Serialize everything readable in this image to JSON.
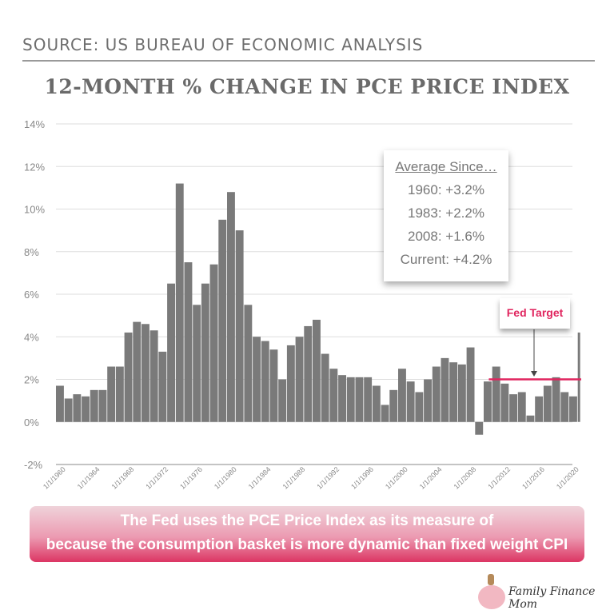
{
  "header": {
    "source": "SOURCE: US BUREAU OF ECONOMIC ANALYSIS"
  },
  "chart_data": {
    "type": "bar",
    "title": "12-MONTH % CHANGE IN PCE PRICE INDEX",
    "xlabel": "",
    "ylabel": "",
    "ylim": [
      -2,
      14
    ],
    "yticks": [
      "-2%",
      "0%",
      "2%",
      "4%",
      "6%",
      "8%",
      "10%",
      "12%",
      "14%"
    ],
    "xticks": [
      "1/1/1960",
      "1/1/1964",
      "1/1/1968",
      "1/1/1972",
      "1/1/1976",
      "1/1/1980",
      "1/1/1984",
      "1/1/1988",
      "1/1/1992",
      "1/1/1996",
      "1/1/2000",
      "1/1/2004",
      "1/1/2008",
      "1/1/2012",
      "1/1/2016",
      "1/1/2020"
    ],
    "grid": true,
    "bar_color": "#7a7a7a",
    "x": [
      1960,
      1961,
      1962,
      1963,
      1964,
      1965,
      1966,
      1967,
      1968,
      1969,
      1970,
      1971,
      1972,
      1973,
      1974,
      1975,
      1976,
      1977,
      1978,
      1979,
      1980,
      1981,
      1982,
      1983,
      1984,
      1985,
      1986,
      1987,
      1988,
      1989,
      1990,
      1991,
      1992,
      1993,
      1994,
      1995,
      1996,
      1997,
      1998,
      1999,
      2000,
      2001,
      2002,
      2003,
      2004,
      2005,
      2006,
      2007,
      2008,
      2009,
      2010,
      2011,
      2012,
      2013,
      2014,
      2015,
      2016,
      2017,
      2018,
      2019,
      2020,
      2021
    ],
    "values": [
      1.7,
      1.1,
      1.3,
      1.2,
      1.5,
      1.5,
      2.6,
      2.6,
      4.2,
      4.7,
      4.6,
      4.3,
      3.3,
      6.5,
      11.2,
      7.5,
      5.5,
      6.5,
      7.4,
      9.5,
      10.8,
      9.0,
      5.5,
      4.0,
      3.8,
      3.4,
      2.0,
      3.6,
      4.0,
      4.5,
      4.8,
      3.2,
      2.5,
      2.2,
      2.1,
      2.1,
      2.1,
      1.7,
      0.8,
      1.5,
      2.5,
      1.9,
      1.4,
      2.0,
      2.6,
      3.0,
      2.8,
      2.7,
      3.5,
      -0.6,
      1.9,
      2.6,
      1.8,
      1.3,
      1.4,
      0.3,
      1.2,
      1.7,
      2.1,
      1.4,
      1.2,
      4.2
    ],
    "fed_target": {
      "label": "Fed Target",
      "value": 2,
      "from": 2010,
      "to": 2021,
      "color": "#e0245e"
    },
    "averages": {
      "heading": "Average Since…",
      "lines": [
        "1960: +3.2%",
        "1983: +2.2%",
        "2008: +1.6%",
        "Current: +4.2%"
      ]
    }
  },
  "banner": {
    "line1": "The Fed uses the PCE Price Index as its measure of",
    "line2": "because the consumption basket is more dynamic than fixed weight CPI"
  },
  "logo": {
    "text": "Family Finance Mom"
  }
}
